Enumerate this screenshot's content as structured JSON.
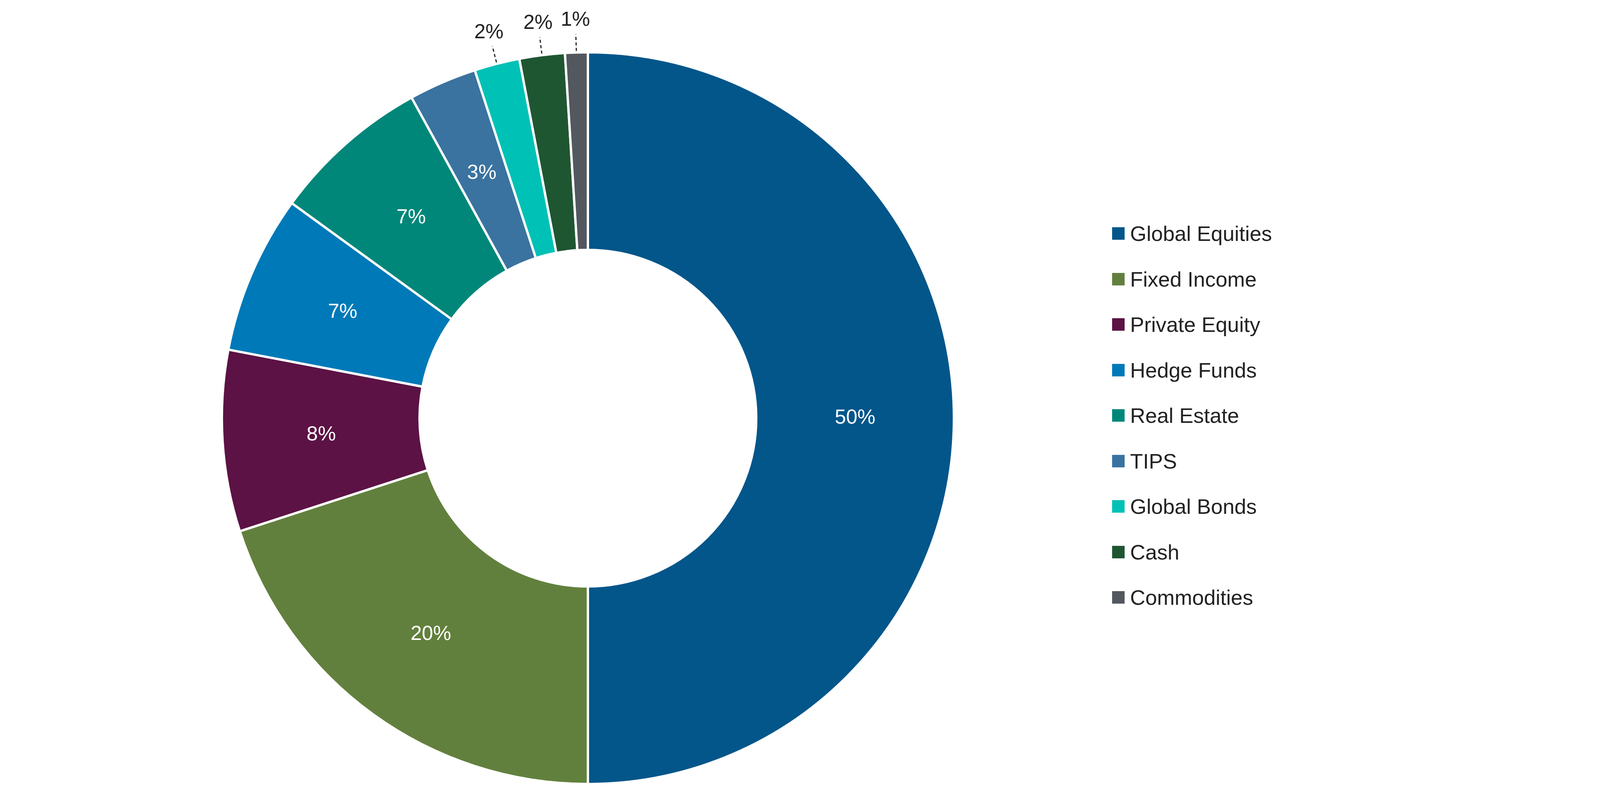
{
  "chart_data": {
    "type": "doughnut",
    "categories": [
      "Global Equities",
      "Fixed Income",
      "Private Equity",
      "Hedge Funds",
      "Real Estate",
      "TIPS",
      "Global Bonds",
      "Cash",
      "Commodities"
    ],
    "values": [
      50,
      20,
      8,
      7,
      7,
      3,
      2,
      2,
      1
    ],
    "value_labels": [
      "50%",
      "20%",
      "8%",
      "7%",
      "7%",
      "3%",
      "2%",
      "2%",
      "1%"
    ],
    "colors": [
      "#03568a",
      "#62803d",
      "#5c1244",
      "#0079b8",
      "#00877a",
      "#3a73a0",
      "#00c1b5",
      "#1f5632",
      "#53585f"
    ],
    "data_labels": true,
    "legend": "right"
  }
}
